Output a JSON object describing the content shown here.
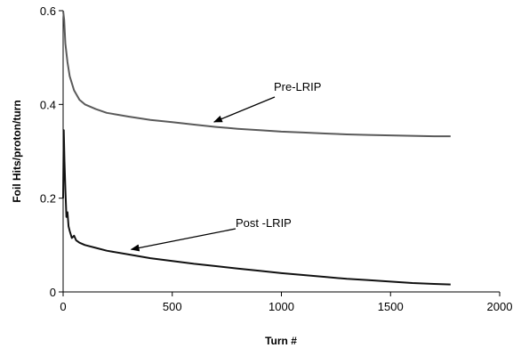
{
  "chart_data": {
    "type": "line",
    "title": "",
    "xlabel": "Turn #",
    "ylabel": "Foil Hits/proton/turn",
    "xlim": [
      0,
      2000
    ],
    "ylim": [
      0,
      0.6
    ],
    "x_ticks": [
      "0",
      "500",
      "1000",
      "1500",
      "2000"
    ],
    "y_ticks": [
      "0",
      "0.2",
      "0.4",
      "0.6"
    ],
    "grid": false,
    "legend": "none",
    "series": [
      {
        "name": "Pre-LRIP",
        "color": "#5a5a5a",
        "x": [
          0,
          5,
          10,
          20,
          30,
          50,
          75,
          100,
          150,
          200,
          300,
          400,
          500,
          600,
          700,
          800,
          900,
          1000,
          1100,
          1200,
          1300,
          1400,
          1500,
          1600,
          1700,
          1775
        ],
        "y": [
          0.6,
          0.58,
          0.53,
          0.49,
          0.46,
          0.43,
          0.41,
          0.4,
          0.39,
          0.382,
          0.374,
          0.367,
          0.362,
          0.357,
          0.352,
          0.348,
          0.345,
          0.342,
          0.34,
          0.338,
          0.336,
          0.335,
          0.334,
          0.333,
          0.332,
          0.332
        ]
      },
      {
        "name": "Post -LRIP",
        "color": "#111111",
        "x": [
          0,
          3,
          6,
          10,
          15,
          20,
          25,
          30,
          40,
          50,
          60,
          75,
          100,
          150,
          200,
          300,
          400,
          500,
          600,
          700,
          800,
          900,
          1000,
          1100,
          1200,
          1300,
          1400,
          1500,
          1600,
          1700,
          1775
        ],
        "y": [
          0.2,
          0.345,
          0.28,
          0.22,
          0.16,
          0.17,
          0.14,
          0.13,
          0.115,
          0.12,
          0.11,
          0.105,
          0.1,
          0.094,
          0.088,
          0.08,
          0.072,
          0.066,
          0.06,
          0.055,
          0.05,
          0.045,
          0.04,
          0.036,
          0.032,
          0.028,
          0.025,
          0.022,
          0.019,
          0.017,
          0.016
        ]
      }
    ],
    "annotations": [
      {
        "text": "Pre-LRIP",
        "arrow_to": [
          700,
          0.355
        ]
      },
      {
        "text": "Post -LRIP",
        "arrow_to": [
          300,
          0.085
        ]
      }
    ]
  }
}
